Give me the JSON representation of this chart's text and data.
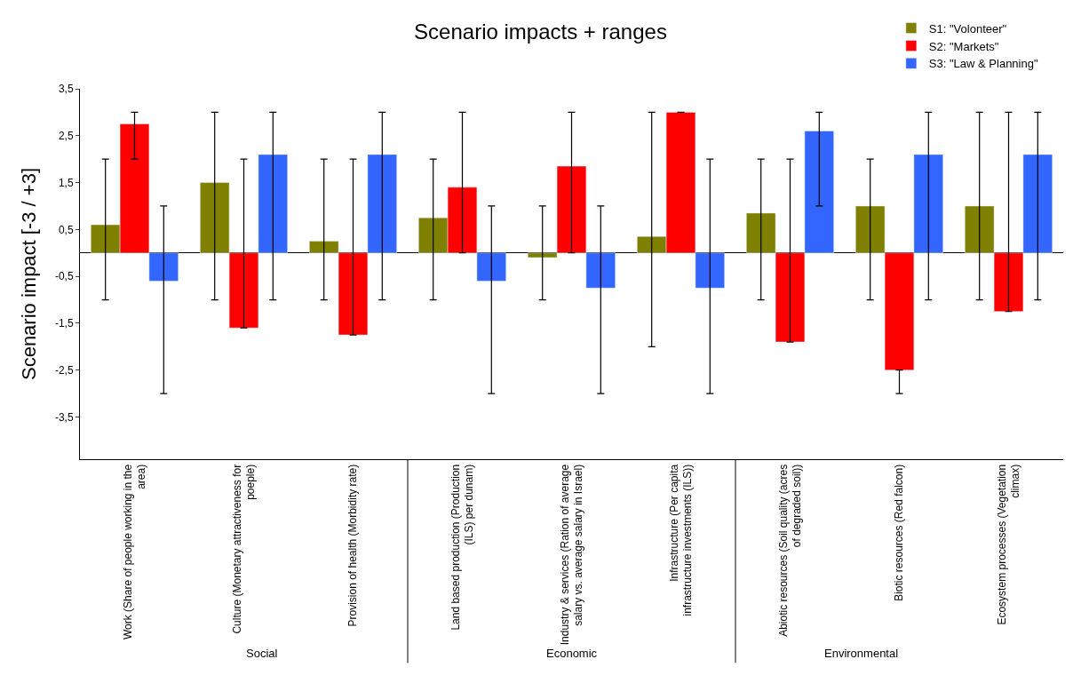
{
  "chart_data": {
    "type": "bar",
    "title": "Scenario impacts + ranges",
    "ylabel": "Scenario impact [-3 / +3]",
    "categories": [
      "Work (Share of people working in the area)",
      "Culture (Monetary attractiveness for poeple)",
      "Provision of health (Morbidity rate)",
      "Land based production (Production (ILS) per dunam)",
      "Industry & services (Ration of average salary vs. average salary in Israel)",
      "Infrastructure (Per capita infrastructure investments (ILS))",
      "Abiotic resources (Soil quality (acres of degraded soil))",
      "Biotic resources (Red falcon)",
      "Ecosystem processes (Vegetation climax)"
    ],
    "series": [
      {
        "name": "S1: \"Volonteer\"",
        "color": "#808000",
        "values": [
          0.6,
          1.5,
          0.25,
          0.75,
          -0.1,
          0.35,
          0.85,
          1.0,
          1.0
        ],
        "errors": [
          [
            -1,
            2
          ],
          [
            -1,
            3
          ],
          [
            -1,
            2
          ],
          [
            -1,
            2
          ],
          [
            -1,
            1
          ],
          [
            -2,
            3
          ],
          [
            -1,
            2
          ],
          [
            -1,
            2
          ],
          [
            -1,
            3
          ]
        ]
      },
      {
        "name": "S2: \"Markets\"",
        "color": "#ff0000",
        "values": [
          2.75,
          -1.6,
          -1.75,
          1.4,
          1.85,
          3.0,
          -1.9,
          -2.5,
          -1.25
        ],
        "errors": [
          [
            2,
            3
          ],
          [
            -1.6,
            2
          ],
          [
            -1.75,
            2
          ],
          [
            0,
            3
          ],
          [
            0,
            3
          ],
          [
            3,
            3
          ],
          [
            -1.9,
            2
          ],
          [
            -3,
            -2.5
          ],
          [
            -1.25,
            3
          ]
        ]
      },
      {
        "name": "S3: \"Law & Planning\"",
        "color": "#3366ff",
        "values": [
          -0.6,
          2.1,
          2.1,
          -0.6,
          -0.75,
          -0.75,
          2.6,
          2.1,
          2.1
        ],
        "errors": [
          [
            -3,
            1
          ],
          [
            -1,
            3
          ],
          [
            -1,
            3
          ],
          [
            -3,
            1
          ],
          [
            -3,
            1
          ],
          [
            -3,
            2
          ],
          [
            1,
            3
          ],
          [
            -1,
            3
          ],
          [
            -1,
            3
          ]
        ]
      }
    ],
    "ylim": [
      -4.4,
      3.5
    ],
    "yticks": [
      {
        "value": 3.5,
        "label": "3,5"
      },
      {
        "value": 2.5,
        "label": "2,5"
      },
      {
        "value": 1.5,
        "label": "1,5"
      },
      {
        "value": 0.5,
        "label": "0,5"
      },
      {
        "value": -0.5,
        "label": "-0,5"
      },
      {
        "value": -1.5,
        "label": "-1,5"
      },
      {
        "value": -2.5,
        "label": "-2,5"
      },
      {
        "value": -3.5,
        "label": "-3,5"
      }
    ],
    "annotations": [
      "Social",
      "Economic",
      "Environmental"
    ],
    "legend": "top right"
  }
}
